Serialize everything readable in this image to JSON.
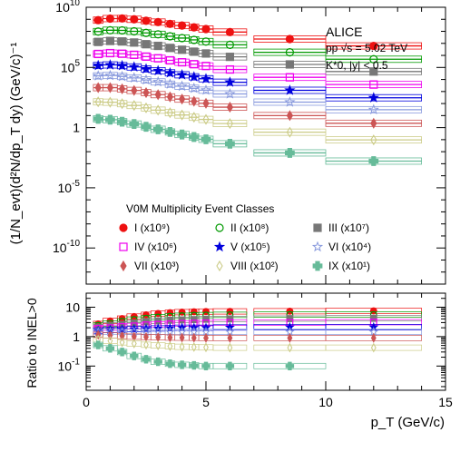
{
  "chart_data": [
    {
      "type": "scatter",
      "panel": "spectra",
      "ylabel": "(1/N_evt)(d²N/dp_T dy) (GeV/c)⁻¹",
      "yscale": "log",
      "xlim": [
        0,
        15
      ],
      "ylim_exp": [
        -13,
        10
      ],
      "yticks": [
        "10^10",
        "10^5",
        "1",
        "10^-5",
        "10^-10"
      ],
      "text": {
        "experiment": "ALICE",
        "system": "pp √s = 5.02 TeV",
        "particle": "K*0, |y| < 0.5",
        "legend_title": "V0M Multiplicity Event Classes"
      },
      "bins": [
        0.5,
        1,
        1.5,
        2,
        2.5,
        3,
        3.5,
        4,
        4.5,
        5,
        6,
        8.5,
        12
      ],
      "bin_edges": [
        [
          0.3,
          0.7
        ],
        [
          0.7,
          1.3
        ],
        [
          1.3,
          1.7
        ],
        [
          1.7,
          2.3
        ],
        [
          2.3,
          2.7
        ],
        [
          2.7,
          3.3
        ],
        [
          3.3,
          3.7
        ],
        [
          3.7,
          4.3
        ],
        [
          4.3,
          4.7
        ],
        [
          4.7,
          5.3
        ],
        [
          5.3,
          6.7
        ],
        [
          7,
          10
        ],
        [
          10,
          14
        ]
      ],
      "series": [
        {
          "name": "I (x10⁹)",
          "color": "#ee1111",
          "marker": "circle-filled",
          "log10y": [
            8.93,
            9.06,
            9.07,
            9.0,
            8.88,
            8.77,
            8.62,
            8.48,
            8.33,
            8.19,
            7.94,
            7.36,
            6.79
          ]
        },
        {
          "name": "II (x10⁸)",
          "color": "#009900",
          "marker": "circle-open",
          "log10y": [
            7.98,
            8.09,
            8.08,
            8.0,
            7.87,
            7.75,
            7.59,
            7.44,
            7.29,
            7.15,
            6.88,
            6.26,
            5.68
          ]
        },
        {
          "name": "III (x10⁷)",
          "color": "#777777",
          "marker": "square-filled",
          "log10y": [
            7.12,
            7.2,
            7.16,
            7.07,
            6.93,
            6.79,
            6.62,
            6.47,
            6.31,
            6.16,
            5.88,
            5.25,
            4.66
          ]
        },
        {
          "name": "IV (x10⁶)",
          "color": "#ee00ee",
          "marker": "square-open",
          "log10y": [
            6.12,
            6.19,
            6.14,
            6.05,
            5.9,
            5.76,
            5.59,
            5.43,
            5.27,
            5.12,
            4.83,
            4.18,
            3.58
          ]
        },
        {
          "name": "V (x10⁵)",
          "color": "#0000dd",
          "marker": "star-filled",
          "log10y": [
            5.16,
            5.21,
            5.15,
            5.04,
            4.88,
            4.73,
            4.55,
            4.39,
            4.22,
            4.06,
            3.77,
            3.1,
            2.48
          ]
        },
        {
          "name": "VI (x10⁴)",
          "color": "#8899dd",
          "marker": "star-open",
          "log10y": [
            4.3,
            4.33,
            4.25,
            4.13,
            3.96,
            3.8,
            3.61,
            3.44,
            3.27,
            3.11,
            2.8,
            2.12,
            1.49
          ]
        },
        {
          "name": "VII (x10³)",
          "color": "#cc5555",
          "marker": "diamond-filled",
          "log10y": [
            3.32,
            3.32,
            3.22,
            3.09,
            2.91,
            2.74,
            2.55,
            2.37,
            2.19,
            2.02,
            1.7,
            1.0,
            0.36
          ]
        },
        {
          "name": "VIII (x10²)",
          "color": "#cccc88",
          "marker": "diamond-open",
          "log10y": [
            2.14,
            2.11,
            1.99,
            1.84,
            1.64,
            1.45,
            1.24,
            1.05,
            0.86,
            0.68,
            0.34,
            -0.38,
            -1.02
          ]
        },
        {
          "name": "IX (x10¹)",
          "color": "#66bb99",
          "marker": "cross-filled",
          "log10y": [
            0.73,
            0.66,
            0.49,
            0.3,
            0.07,
            -0.14,
            -0.36,
            -0.57,
            -0.78,
            -0.97,
            -1.34,
            -2.1,
            -2.78
          ]
        }
      ]
    },
    {
      "type": "scatter",
      "panel": "ratio",
      "xlabel": "p_T (GeV/c)",
      "ylabel": "Ratio to INEL>0",
      "yscale": "log",
      "xlim": [
        0,
        15
      ],
      "ylim": [
        0.015,
        30
      ],
      "xticks": [
        "0",
        "5",
        "10",
        "15"
      ],
      "yticks": [
        "10",
        "1",
        "10^-1"
      ],
      "bins": [
        0.5,
        1,
        1.5,
        2,
        2.5,
        3,
        3.5,
        4,
        4.5,
        5,
        6,
        8.5,
        12
      ],
      "series": [
        {
          "name": "I",
          "values": [
            2.7,
            3.4,
            4.1,
            4.8,
            5.5,
            6.1,
            6.5,
            6.8,
            7.0,
            7.1,
            7.2,
            7.3,
            7.5
          ]
        },
        {
          "name": "II",
          "values": [
            2.4,
            2.8,
            3.3,
            3.8,
            4.2,
            4.6,
            4.9,
            5.1,
            5.3,
            5.4,
            5.5,
            5.6,
            5.6
          ]
        },
        {
          "name": "III",
          "values": [
            2.1,
            2.4,
            2.6,
            2.9,
            3.2,
            3.4,
            3.6,
            3.7,
            3.8,
            3.9,
            4.0,
            4.1,
            4.2
          ]
        },
        {
          "name": "IV",
          "values": [
            1.9,
            2.0,
            2.2,
            2.3,
            2.5,
            2.6,
            2.7,
            2.8,
            2.85,
            2.9,
            3.0,
            3.0,
            3.1
          ]
        },
        {
          "name": "V",
          "values": [
            1.6,
            1.7,
            1.75,
            1.8,
            1.85,
            1.9,
            1.95,
            2.0,
            2.0,
            2.0,
            2.05,
            2.1,
            2.1
          ]
        },
        {
          "name": "VI",
          "values": [
            1.45,
            1.45,
            1.45,
            1.45,
            1.45,
            1.45,
            1.45,
            1.45,
            1.45,
            1.45,
            1.45,
            1.45,
            1.45
          ]
        },
        {
          "name": "VII",
          "values": [
            1.15,
            1.1,
            1.05,
            1.0,
            0.97,
            0.95,
            0.93,
            0.92,
            0.91,
            0.9,
            0.9,
            0.9,
            0.9
          ]
        },
        {
          "name": "VIII",
          "values": [
            0.8,
            0.72,
            0.64,
            0.58,
            0.53,
            0.5,
            0.47,
            0.45,
            0.44,
            0.43,
            0.42,
            0.42,
            0.42
          ]
        },
        {
          "name": "IX",
          "values": [
            0.52,
            0.4,
            0.3,
            0.22,
            0.17,
            0.14,
            0.12,
            0.11,
            0.105,
            0.1,
            0.1,
            0.1,
            null
          ]
        }
      ]
    }
  ]
}
